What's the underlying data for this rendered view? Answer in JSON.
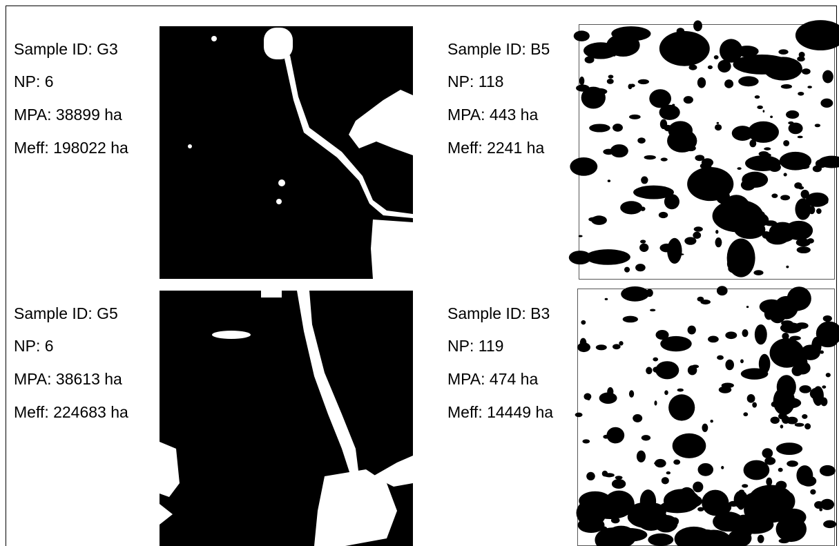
{
  "panels": [
    {
      "lines": [
        "Sample ID: G3",
        "NP: 6",
        "MPA: 38899 ha",
        "Meff: 198022 ha"
      ]
    },
    {
      "lines": [
        "Sample ID: B5",
        "NP: 118",
        "MPA: 443 ha",
        "Meff: 2241 ha"
      ]
    },
    {
      "lines": [
        "Sample ID: G5",
        "NP: 6",
        "MPA: 38613 ha",
        "Meff: 224683 ha"
      ]
    },
    {
      "lines": [
        "Sample ID: B3",
        "NP: 119",
        "MPA: 474 ha",
        "Meff: 14449 ha"
      ]
    }
  ]
}
